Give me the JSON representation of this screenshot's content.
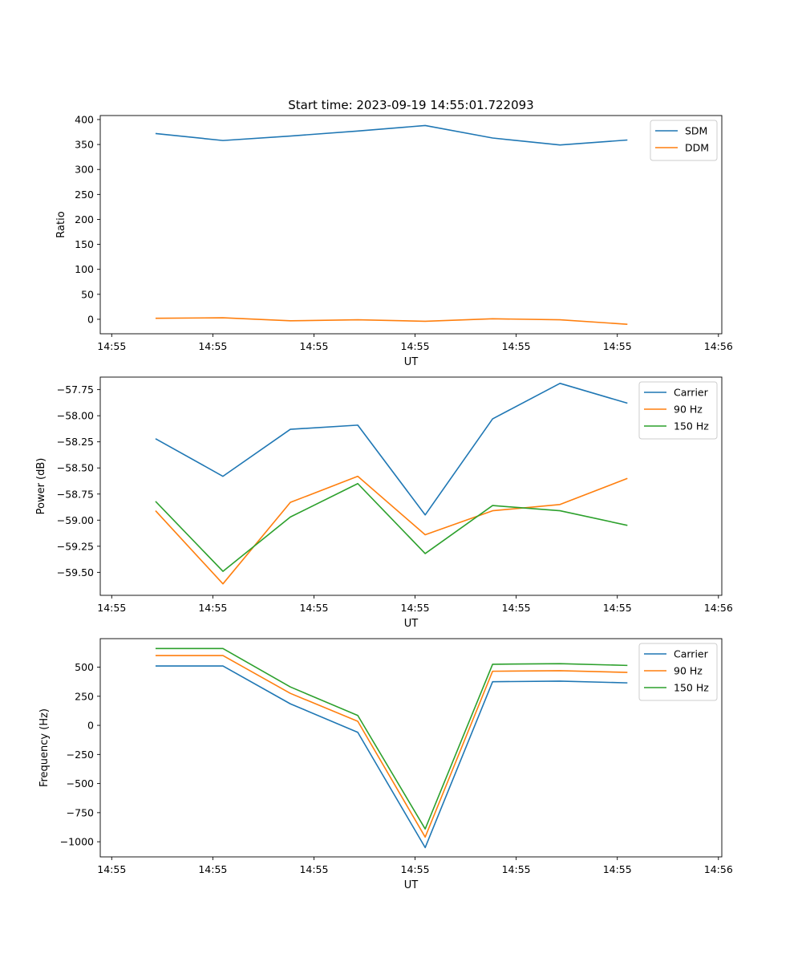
{
  "figure_title": "Start time: 2023-09-19 14:55:01.722093",
  "colors": {
    "blue": "#1f77b4",
    "orange": "#ff7f0e",
    "green": "#2ca02c"
  },
  "chart_data": [
    {
      "type": "line",
      "title": "Start time: 2023-09-19 14:55:01.722093",
      "xlabel": "UT",
      "ylabel": "Ratio",
      "x": [
        1,
        2,
        3,
        4,
        5,
        6,
        7,
        8
      ],
      "xlim": [
        0.18,
        9.4
      ],
      "x_ticks": [
        0.35,
        1.85,
        3.35,
        4.85,
        6.35,
        7.85,
        9.35
      ],
      "x_tick_labels": [
        "14:55",
        "14:55",
        "14:55",
        "14:55",
        "14:55",
        "14:55",
        "14:56"
      ],
      "ylim": [
        -29,
        408
      ],
      "y_ticks": [
        0,
        50,
        100,
        150,
        200,
        250,
        300,
        350,
        400
      ],
      "y_tick_labels": [
        "0",
        "50",
        "100",
        "150",
        "200",
        "250",
        "300",
        "350",
        "400"
      ],
      "legend_position": "top-right",
      "series": [
        {
          "name": "SDM",
          "color": "#1f77b4",
          "values": [
            372,
            358,
            367,
            377,
            388,
            363,
            349,
            359
          ]
        },
        {
          "name": "DDM",
          "color": "#ff7f0e",
          "values": [
            2,
            3,
            -3,
            -1,
            -4,
            1,
            -1,
            -10
          ]
        }
      ]
    },
    {
      "type": "line",
      "xlabel": "UT",
      "ylabel": "Power (dB)",
      "x": [
        1,
        2,
        3,
        4,
        5,
        6,
        7,
        8
      ],
      "xlim": [
        0.18,
        9.4
      ],
      "x_ticks": [
        0.35,
        1.85,
        3.35,
        4.85,
        6.35,
        7.85,
        9.35
      ],
      "x_tick_labels": [
        "14:55",
        "14:55",
        "14:55",
        "14:55",
        "14:55",
        "14:55",
        "14:56"
      ],
      "ylim": [
        -59.72,
        -57.63
      ],
      "y_ticks": [
        -59.5,
        -59.25,
        -59.0,
        -58.75,
        -58.5,
        -58.25,
        -58.0,
        -57.75
      ],
      "y_tick_labels": [
        "−59.50",
        "−59.25",
        "−59.00",
        "−58.75",
        "−58.50",
        "−58.25",
        "−58.00",
        "−57.75"
      ],
      "legend_position": "top-right",
      "series": [
        {
          "name": "Carrier",
          "color": "#1f77b4",
          "values": [
            -58.22,
            -58.58,
            -58.13,
            -58.09,
            -58.95,
            -58.03,
            -57.69,
            -57.88
          ]
        },
        {
          "name": "90 Hz",
          "color": "#ff7f0e",
          "values": [
            -58.91,
            -59.61,
            -58.83,
            -58.58,
            -59.14,
            -58.91,
            -58.85,
            -58.6
          ]
        },
        {
          "name": "150 Hz",
          "color": "#2ca02c",
          "values": [
            -58.82,
            -59.49,
            -58.97,
            -58.65,
            -59.32,
            -58.86,
            -58.91,
            -59.05
          ]
        }
      ]
    },
    {
      "type": "line",
      "xlabel": "UT",
      "ylabel": "Frequency (Hz)",
      "x": [
        1,
        2,
        3,
        4,
        5,
        6,
        7,
        8
      ],
      "xlim": [
        0.18,
        9.4
      ],
      "x_ticks": [
        0.35,
        1.85,
        3.35,
        4.85,
        6.35,
        7.85,
        9.35
      ],
      "x_tick_labels": [
        "14:55",
        "14:55",
        "14:55",
        "14:55",
        "14:55",
        "14:55",
        "14:56"
      ],
      "ylim": [
        -1130,
        745
      ],
      "y_ticks": [
        -1000,
        -750,
        -500,
        -250,
        0,
        250,
        500
      ],
      "y_tick_labels": [
        "−1000",
        "−750",
        "−500",
        "−250",
        "0",
        "250",
        "500"
      ],
      "legend_position": "top-right",
      "series": [
        {
          "name": "Carrier",
          "color": "#1f77b4",
          "values": [
            510,
            510,
            185,
            -60,
            -1050,
            375,
            380,
            365
          ]
        },
        {
          "name": "90 Hz",
          "color": "#ff7f0e",
          "values": [
            600,
            600,
            275,
            35,
            -960,
            465,
            470,
            455
          ]
        },
        {
          "name": "150 Hz",
          "color": "#2ca02c",
          "values": [
            660,
            660,
            330,
            85,
            -890,
            525,
            530,
            515
          ]
        }
      ]
    }
  ]
}
